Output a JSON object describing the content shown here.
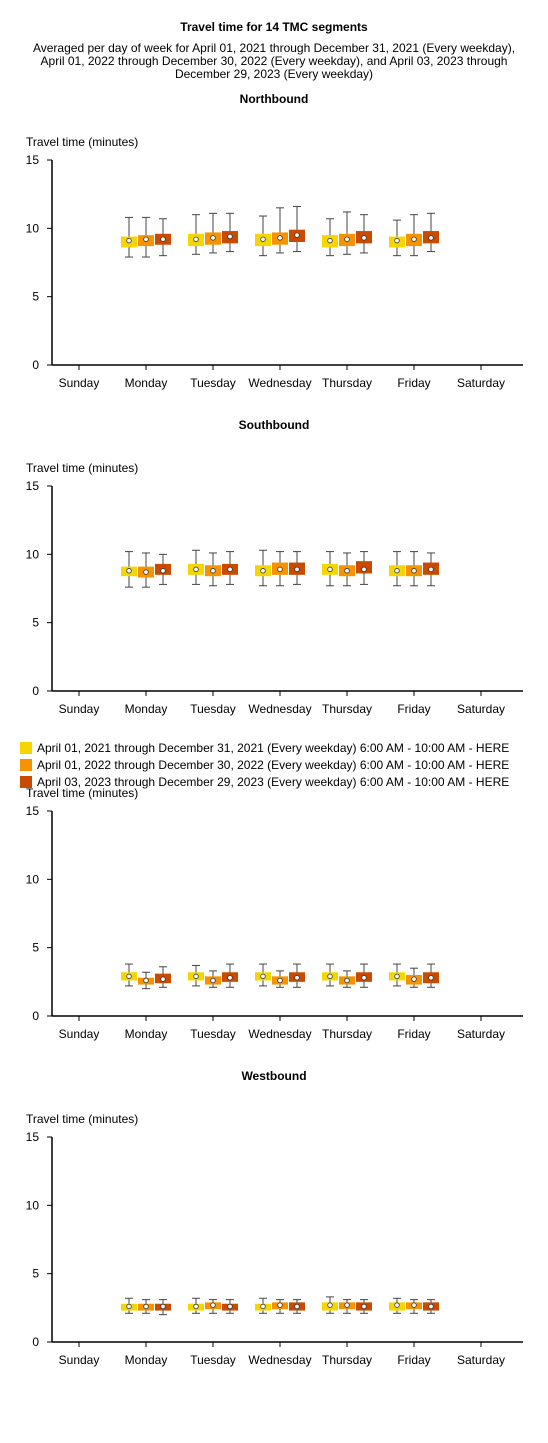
{
  "title": "Travel time for 14 TMC segments",
  "subtitle": "Averaged per day of week for April 01, 2021 through December 31, 2021 (Every weekday), April 01, 2022 through December 30, 2022 (Every weekday), and April 03, 2023 through December 29, 2023 (Every weekday)",
  "legend": [
    {
      "label": "April 01, 2021 through December 31, 2021 (Every weekday) 6:00 AM - 10:00 AM - HERE",
      "color": "#F5D600"
    },
    {
      "label": "April 01, 2022 through December 30, 2022 (Every weekday) 6:00 AM - 10:00 AM - HERE",
      "color": "#F59300"
    },
    {
      "label": "April 03, 2023 through December 29, 2023 (Every weekday) 6:00 AM - 10:00 AM - HERE",
      "color": "#C84B00"
    }
  ],
  "chart_data": [
    {
      "type": "boxplot",
      "title": "Northbound",
      "ylabel": "Travel time (minutes)",
      "ylim": [
        0,
        15
      ],
      "yticks": [
        0,
        5,
        10,
        15
      ],
      "categories": [
        "Sunday",
        "Monday",
        "Tuesday",
        "Wednesday",
        "Thursday",
        "Friday",
        "Saturday"
      ],
      "series": [
        {
          "name": "April 01, 2021 through December 31, 2021 (Every weekday) 6:00 AM - 10:00 AM - HERE",
          "data": [
            null,
            {
              "min": 7.9,
              "q1": 8.6,
              "median": 9.1,
              "q3": 9.4,
              "max": 10.8
            },
            {
              "min": 8.1,
              "q1": 8.7,
              "median": 9.2,
              "q3": 9.6,
              "max": 11.0
            },
            {
              "min": 8.0,
              "q1": 8.7,
              "median": 9.2,
              "q3": 9.6,
              "max": 10.9
            },
            {
              "min": 8.0,
              "q1": 8.6,
              "median": 9.1,
              "q3": 9.5,
              "max": 10.7
            },
            {
              "min": 8.0,
              "q1": 8.6,
              "median": 9.1,
              "q3": 9.4,
              "max": 10.6
            },
            null
          ]
        },
        {
          "name": "April 01, 2022 through December 30, 2022 (Every weekday) 6:00 AM - 10:00 AM - HERE",
          "data": [
            null,
            {
              "min": 7.9,
              "q1": 8.7,
              "median": 9.2,
              "q3": 9.5,
              "max": 10.8
            },
            {
              "min": 8.2,
              "q1": 8.8,
              "median": 9.3,
              "q3": 9.7,
              "max": 11.1
            },
            {
              "min": 8.2,
              "q1": 8.8,
              "median": 9.3,
              "q3": 9.7,
              "max": 11.5
            },
            {
              "min": 8.1,
              "q1": 8.7,
              "median": 9.2,
              "q3": 9.6,
              "max": 11.2
            },
            {
              "min": 8.0,
              "q1": 8.7,
              "median": 9.2,
              "q3": 9.6,
              "max": 11.0
            },
            null
          ]
        },
        {
          "name": "April 03, 2023 through December 29, 2023 (Every weekday) 6:00 AM - 10:00 AM - HERE",
          "data": [
            null,
            {
              "min": 8.0,
              "q1": 8.8,
              "median": 9.2,
              "q3": 9.6,
              "max": 10.7
            },
            {
              "min": 8.3,
              "q1": 8.9,
              "median": 9.4,
              "q3": 9.8,
              "max": 11.1
            },
            {
              "min": 8.3,
              "q1": 9.0,
              "median": 9.5,
              "q3": 9.9,
              "max": 11.6
            },
            {
              "min": 8.2,
              "q1": 8.9,
              "median": 9.3,
              "q3": 9.8,
              "max": 11.0
            },
            {
              "min": 8.3,
              "q1": 8.9,
              "median": 9.3,
              "q3": 9.8,
              "max": 11.1
            },
            null
          ]
        }
      ]
    },
    {
      "type": "boxplot",
      "title": "Southbound",
      "ylabel": "Travel time (minutes)",
      "ylim": [
        0,
        15
      ],
      "yticks": [
        0,
        5,
        10,
        15
      ],
      "categories": [
        "Sunday",
        "Monday",
        "Tuesday",
        "Wednesday",
        "Thursday",
        "Friday",
        "Saturday"
      ],
      "series": [
        {
          "name": "April 01, 2021 through December 31, 2021 (Every weekday) 6:00 AM - 10:00 AM - HERE",
          "data": [
            null,
            {
              "min": 7.6,
              "q1": 8.4,
              "median": 8.8,
              "q3": 9.1,
              "max": 10.2
            },
            {
              "min": 7.8,
              "q1": 8.5,
              "median": 8.9,
              "q3": 9.3,
              "max": 10.3
            },
            {
              "min": 7.7,
              "q1": 8.4,
              "median": 8.8,
              "q3": 9.2,
              "max": 10.3
            },
            {
              "min": 7.7,
              "q1": 8.5,
              "median": 8.9,
              "q3": 9.3,
              "max": 10.2
            },
            {
              "min": 7.7,
              "q1": 8.4,
              "median": 8.8,
              "q3": 9.2,
              "max": 10.2
            },
            null
          ]
        },
        {
          "name": "April 01, 2022 through December 30, 2022 (Every weekday) 6:00 AM - 10:00 AM - HERE",
          "data": [
            null,
            {
              "min": 7.6,
              "q1": 8.3,
              "median": 8.7,
              "q3": 9.1,
              "max": 10.1
            },
            {
              "min": 7.7,
              "q1": 8.4,
              "median": 8.8,
              "q3": 9.2,
              "max": 10.1
            },
            {
              "min": 7.7,
              "q1": 8.5,
              "median": 8.9,
              "q3": 9.4,
              "max": 10.2
            },
            {
              "min": 7.7,
              "q1": 8.4,
              "median": 8.8,
              "q3": 9.2,
              "max": 10.1
            },
            {
              "min": 7.7,
              "q1": 8.4,
              "median": 8.8,
              "q3": 9.2,
              "max": 10.2
            },
            null
          ]
        },
        {
          "name": "April 03, 2023 through December 29, 2023 (Every weekday) 6:00 AM - 10:00 AM - HERE",
          "data": [
            null,
            {
              "min": 7.8,
              "q1": 8.5,
              "median": 8.8,
              "q3": 9.3,
              "max": 10.0
            },
            {
              "min": 7.8,
              "q1": 8.5,
              "median": 8.9,
              "q3": 9.3,
              "max": 10.2
            },
            {
              "min": 7.8,
              "q1": 8.5,
              "median": 8.9,
              "q3": 9.4,
              "max": 10.2
            },
            {
              "min": 7.8,
              "q1": 8.6,
              "median": 8.9,
              "q3": 9.5,
              "max": 10.2
            },
            {
              "min": 7.7,
              "q1": 8.5,
              "median": 8.9,
              "q3": 9.4,
              "max": 10.1
            },
            null
          ]
        }
      ]
    },
    {
      "type": "boxplot",
      "title": "",
      "ylabel": "Travel time (minutes)",
      "ylim": [
        0,
        15
      ],
      "yticks": [
        0,
        5,
        10,
        15
      ],
      "categories": [
        "Sunday",
        "Monday",
        "Tuesday",
        "Wednesday",
        "Thursday",
        "Friday",
        "Saturday"
      ],
      "series": [
        {
          "name": "April 01, 2021 through December 31, 2021 (Every weekday) 6:00 AM - 10:00 AM - HERE",
          "data": [
            null,
            {
              "min": 2.2,
              "q1": 2.6,
              "median": 2.9,
              "q3": 3.2,
              "max": 3.8
            },
            {
              "min": 2.2,
              "q1": 2.6,
              "median": 2.9,
              "q3": 3.2,
              "max": 3.7
            },
            {
              "min": 2.2,
              "q1": 2.6,
              "median": 2.9,
              "q3": 3.2,
              "max": 3.8
            },
            {
              "min": 2.2,
              "q1": 2.6,
              "median": 2.9,
              "q3": 3.2,
              "max": 3.8
            },
            {
              "min": 2.2,
              "q1": 2.6,
              "median": 2.9,
              "q3": 3.2,
              "max": 3.8
            },
            null
          ]
        },
        {
          "name": "April 01, 2022 through December 30, 2022 (Every weekday) 6:00 AM - 10:00 AM - HERE",
          "data": [
            null,
            {
              "min": 2.0,
              "q1": 2.3,
              "median": 2.6,
              "q3": 2.8,
              "max": 3.2
            },
            {
              "min": 2.1,
              "q1": 2.3,
              "median": 2.6,
              "q3": 2.9,
              "max": 3.3
            },
            {
              "min": 2.1,
              "q1": 2.3,
              "median": 2.6,
              "q3": 2.9,
              "max": 3.3
            },
            {
              "min": 2.1,
              "q1": 2.3,
              "median": 2.6,
              "q3": 2.9,
              "max": 3.3
            },
            {
              "min": 2.1,
              "q1": 2.3,
              "median": 2.7,
              "q3": 3.0,
              "max": 3.5
            },
            null
          ]
        },
        {
          "name": "April 03, 2023 through December 29, 2023 (Every weekday) 6:00 AM - 10:00 AM - HERE",
          "data": [
            null,
            {
              "min": 2.1,
              "q1": 2.4,
              "median": 2.7,
              "q3": 3.1,
              "max": 3.6
            },
            {
              "min": 2.1,
              "q1": 2.5,
              "median": 2.8,
              "q3": 3.2,
              "max": 3.8
            },
            {
              "min": 2.1,
              "q1": 2.5,
              "median": 2.8,
              "q3": 3.2,
              "max": 3.8
            },
            {
              "min": 2.1,
              "q1": 2.5,
              "median": 2.8,
              "q3": 3.2,
              "max": 3.8
            },
            {
              "min": 2.1,
              "q1": 2.4,
              "median": 2.8,
              "q3": 3.2,
              "max": 3.8
            },
            null
          ]
        }
      ]
    },
    {
      "type": "boxplot",
      "title": "Westbound",
      "ylabel": "Travel time (minutes)",
      "ylim": [
        0,
        15
      ],
      "yticks": [
        0,
        5,
        10,
        15
      ],
      "categories": [
        "Sunday",
        "Monday",
        "Tuesday",
        "Wednesday",
        "Thursday",
        "Friday",
        "Saturday"
      ],
      "series": [
        {
          "name": "April 01, 2021 through December 31, 2021 (Every weekday) 6:00 AM - 10:00 AM - HERE",
          "data": [
            null,
            {
              "min": 2.1,
              "q1": 2.3,
              "median": 2.6,
              "q3": 2.8,
              "max": 3.2
            },
            {
              "min": 2.1,
              "q1": 2.3,
              "median": 2.6,
              "q3": 2.8,
              "max": 3.2
            },
            {
              "min": 2.1,
              "q1": 2.3,
              "median": 2.6,
              "q3": 2.8,
              "max": 3.2
            },
            {
              "min": 2.1,
              "q1": 2.3,
              "median": 2.7,
              "q3": 2.9,
              "max": 3.3
            },
            {
              "min": 2.1,
              "q1": 2.3,
              "median": 2.7,
              "q3": 2.9,
              "max": 3.2
            },
            null
          ]
        },
        {
          "name": "April 01, 2022 through December 30, 2022 (Every weekday) 6:00 AM - 10:00 AM - HERE",
          "data": [
            null,
            {
              "min": 2.1,
              "q1": 2.3,
              "median": 2.6,
              "q3": 2.8,
              "max": 3.1
            },
            {
              "min": 2.1,
              "q1": 2.4,
              "median": 2.7,
              "q3": 2.9,
              "max": 3.1
            },
            {
              "min": 2.1,
              "q1": 2.4,
              "median": 2.7,
              "q3": 2.9,
              "max": 3.1
            },
            {
              "min": 2.1,
              "q1": 2.4,
              "median": 2.7,
              "q3": 2.9,
              "max": 3.1
            },
            {
              "min": 2.1,
              "q1": 2.4,
              "median": 2.7,
              "q3": 2.9,
              "max": 3.1
            },
            null
          ]
        },
        {
          "name": "April 03, 2023 through December 29, 2023 (Every weekday) 6:00 AM - 10:00 AM - HERE",
          "data": [
            null,
            {
              "min": 2.0,
              "q1": 2.3,
              "median": 2.6,
              "q3": 2.8,
              "max": 3.1
            },
            {
              "min": 2.1,
              "q1": 2.3,
              "median": 2.6,
              "q3": 2.8,
              "max": 3.1
            },
            {
              "min": 2.1,
              "q1": 2.3,
              "median": 2.6,
              "q3": 2.9,
              "max": 3.1
            },
            {
              "min": 2.1,
              "q1": 2.3,
              "median": 2.6,
              "q3": 2.9,
              "max": 3.1
            },
            {
              "min": 2.1,
              "q1": 2.3,
              "median": 2.6,
              "q3": 2.9,
              "max": 3.1
            },
            null
          ]
        }
      ]
    }
  ]
}
